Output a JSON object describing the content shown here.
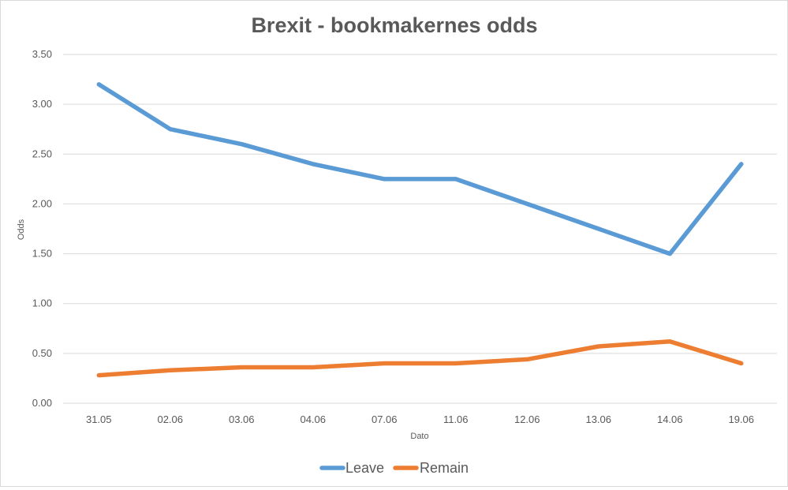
{
  "chart_data": {
    "type": "line",
    "title": "Brexit - bookmakernes odds",
    "xlabel": "Dato",
    "ylabel": "Odds",
    "categories": [
      "31.05",
      "02.06",
      "03.06",
      "04.06",
      "07.06",
      "11.06",
      "12.06",
      "13.06",
      "14.06",
      "19.06"
    ],
    "series": [
      {
        "name": "Leave",
        "color": "#5b9bd5",
        "values": [
          3.2,
          2.75,
          2.6,
          2.4,
          2.25,
          2.25,
          2.0,
          1.75,
          1.5,
          2.4
        ]
      },
      {
        "name": "Remain",
        "color": "#ed7d31",
        "values": [
          0.28,
          0.33,
          0.36,
          0.36,
          0.4,
          0.4,
          0.44,
          0.57,
          0.62,
          0.4
        ]
      }
    ],
    "ylim": [
      0,
      3.5
    ],
    "yticks": [
      "0.00",
      "0.50",
      "1.00",
      "1.50",
      "2.00",
      "2.50",
      "3.00",
      "3.50"
    ],
    "grid": true,
    "legend_position": "bottom"
  }
}
